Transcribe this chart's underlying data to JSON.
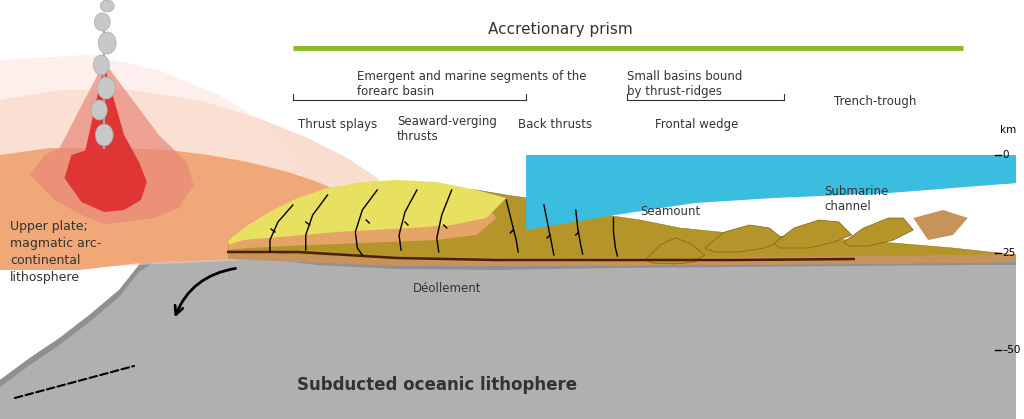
{
  "bg_color": "#ffffff",
  "ocean_color": "#3bbde0",
  "slab_color": "#b0b0b0",
  "slab_dark_color": "#909090",
  "prism_olive": "#b5952a",
  "prism_yellow": "#e8e060",
  "forearc_orange": "#f0a878",
  "forearc_pink": "#f5c8b0",
  "forearc_light_pink": "#fce0d8",
  "volcano_red": "#e03535",
  "volcano_salmon": "#e88878",
  "volcano_pink_glow": "#f5b8b0",
  "green_bar_color": "#88bb22",
  "sediment_brown": "#c8935a",
  "thin_brown": "#b07030",
  "text_color": "#333333",
  "title": "Accretionary prism",
  "label_forearc": "Emergent and marine segments of the\nforearc basin",
  "label_thrust_splays": "Thrust splays",
  "label_seaward": "Seaward-verging\nthrusts",
  "label_back": "Back thrusts",
  "label_small_basins": "Small basins bound\nby thrust-ridges",
  "label_frontal": "Frontal wedge",
  "label_trench": "Trench-trough",
  "label_seamount": "Seamount",
  "label_submarine": "Submarine\nchannel",
  "label_decollement": "Déollement",
  "label_upper_plate": "Upper plate;\nmagmatic arc-\ncontinental\nlithosphere",
  "label_subducted": "Subducted oceanic lithophere"
}
